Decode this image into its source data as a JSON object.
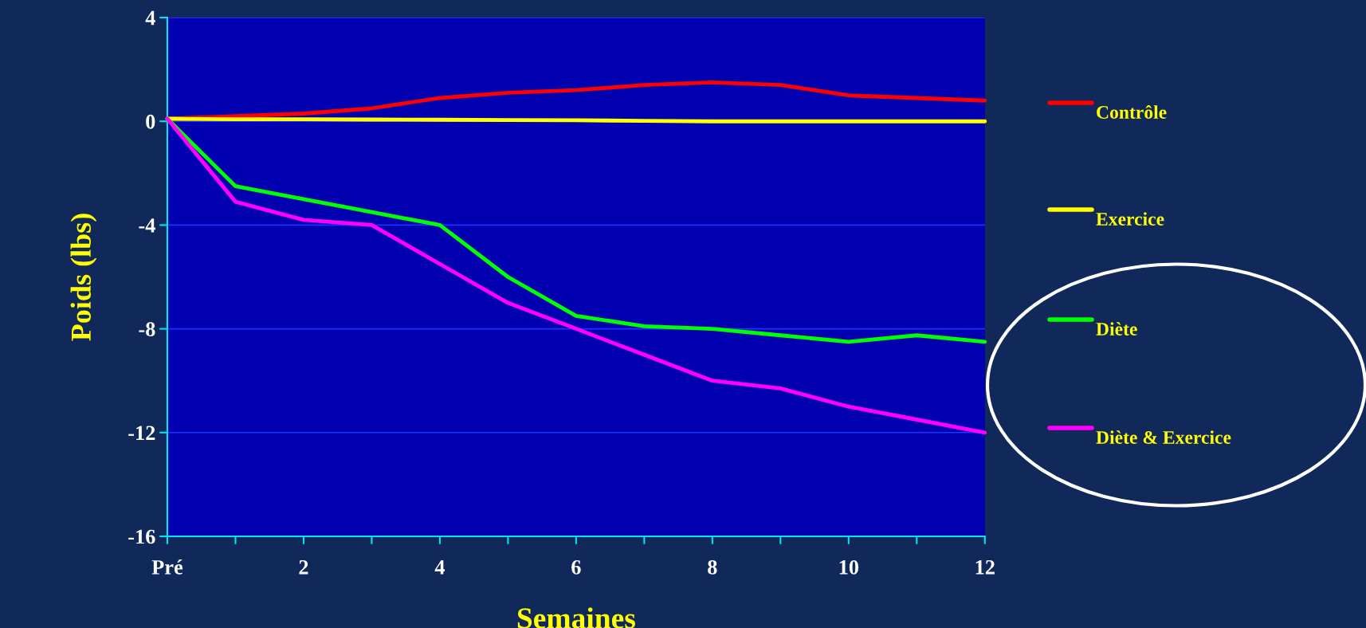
{
  "chart_data": {
    "type": "line",
    "xlabel": "Semaines",
    "ylabel": "Poids (lbs)",
    "x": [
      0,
      1,
      2,
      3,
      4,
      5,
      6,
      7,
      8,
      9,
      10,
      11,
      12
    ],
    "series": [
      {
        "name": "Contrôle",
        "color": "#ff0000",
        "values": [
          0.1,
          0.2,
          0.3,
          0.5,
          0.9,
          1.1,
          1.2,
          1.4,
          1.5,
          1.4,
          1.0,
          0.9,
          0.8
        ]
      },
      {
        "name": "Exercice",
        "color": "#ffff00",
        "values": [
          0.1,
          0.08,
          0.08,
          0.07,
          0.06,
          0.05,
          0.04,
          0.02,
          0,
          0,
          0,
          0,
          0
        ]
      },
      {
        "name": "Diète",
        "color": "#00ff00",
        "values": [
          0.1,
          -2.5,
          -3.0,
          -3.5,
          -4.0,
          -6.0,
          -7.5,
          -7.9,
          -8.0,
          -8.25,
          -8.5,
          -8.25,
          -8.5
        ]
      },
      {
        "name": "Diète & Exercice",
        "color": "#ff00ff",
        "values": [
          0.1,
          -3.1,
          -3.8,
          -4.0,
          -5.5,
          -7.0,
          -8.0,
          -9.0,
          -10.0,
          -10.3,
          -11.0,
          -11.5,
          -12.0
        ]
      }
    ],
    "xlim": [
      0,
      12
    ],
    "xticks": [
      {
        "value": 0,
        "label": "Pré"
      },
      {
        "value": 1,
        "label": null
      },
      2,
      {
        "value": 3,
        "label": null
      },
      4,
      {
        "value": 5,
        "label": null
      },
      6,
      {
        "value": 7,
        "label": null
      },
      8,
      {
        "value": 9,
        "label": null
      },
      10,
      {
        "value": 11,
        "label": null
      },
      12
    ],
    "ylim": [
      -16,
      4
    ],
    "yticks": [
      -16,
      -12,
      -8,
      -4,
      0,
      4
    ],
    "grid": "y",
    "legend": "right",
    "marker": "none",
    "line_style": "solid"
  }
}
